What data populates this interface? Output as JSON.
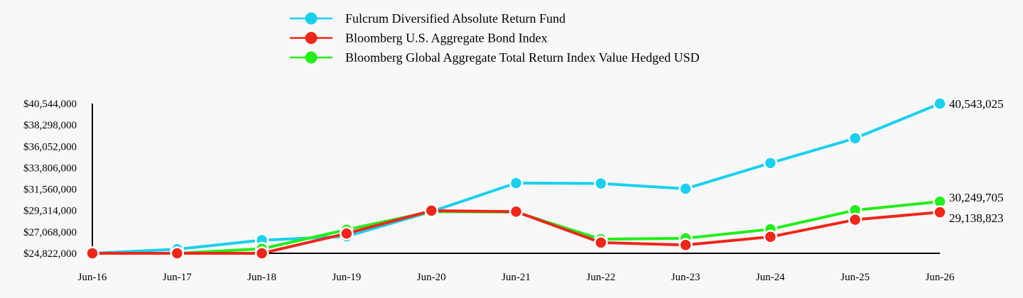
{
  "chart_data": {
    "type": "line",
    "categories": [
      "Jun-16",
      "Jun-17",
      "Jun-18",
      "Jun-19",
      "Jun-20",
      "Jun-21",
      "Jun-22",
      "Jun-23",
      "Jun-24",
      "Jun-25",
      "Jun-26"
    ],
    "y_ticks": [
      "$24,822,000",
      "$27,068,000",
      "$29,314,000",
      "$31,560,000",
      "$33,806,000",
      "$36,052,000",
      "$38,298,000",
      "$40,544,000"
    ],
    "ylim": [
      24822000,
      40544000
    ],
    "grid": false,
    "legend_position": "top",
    "series": [
      {
        "name": "Fulcrum Diversified Absolute Return Fund",
        "color": "#1ad0ee",
        "values": [
          24822000,
          25250000,
          26200000,
          26600000,
          29200000,
          32200000,
          32150000,
          31600000,
          34300000,
          36900000,
          40543025
        ],
        "end_label": "40,543,025"
      },
      {
        "name": "Bloomberg U.S. Aggregate Bond Index",
        "color": "#f0261a",
        "values": [
          24822000,
          24822000,
          24822000,
          26900000,
          29300000,
          29200000,
          25950000,
          25700000,
          26550000,
          28350000,
          29138823
        ],
        "end_label": "29,138,823"
      },
      {
        "name": "Bloomberg Global Aggregate Total Return Index Value Hedged USD",
        "color": "#22ee1a",
        "values": [
          24822000,
          24822000,
          25300000,
          27300000,
          29200000,
          29150000,
          26300000,
          26400000,
          27350000,
          29350000,
          30249705
        ],
        "end_label": "30,249,705"
      }
    ]
  }
}
